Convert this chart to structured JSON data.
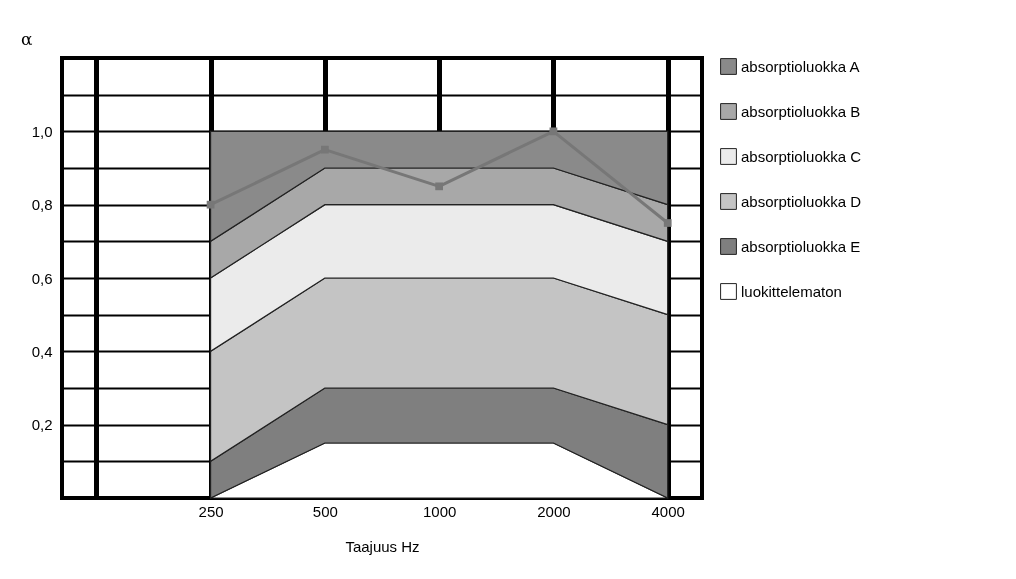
{
  "chart_data": {
    "type": "area",
    "stacked": true,
    "xlabel": "Taajuus Hz",
    "ylabel": "α",
    "categories": [
      null,
      "250",
      "500",
      "1000",
      "2000",
      "4000"
    ],
    "series": [
      {
        "name": "luokittelematon",
        "color": "#ffffff",
        "values": [
          null,
          0,
          0.15,
          0.15,
          0.15,
          0
        ]
      },
      {
        "name": "absorptioluokka E",
        "color": "#7f7f7f",
        "values": [
          null,
          0.1,
          0.15,
          0.15,
          0.15,
          0.2
        ]
      },
      {
        "name": "absorptioluokka D",
        "color": "#c4c4c4",
        "values": [
          null,
          0.3,
          0.3,
          0.3,
          0.3,
          0.3
        ]
      },
      {
        "name": "absorptioluokka C",
        "color": "#ebebeb",
        "values": [
          null,
          0.2,
          0.2,
          0.2,
          0.2,
          0.2
        ]
      },
      {
        "name": "absorptioluokka B",
        "color": "#a8a8a8",
        "values": [
          null,
          0.1,
          0.1,
          0.1,
          0.1,
          0.1
        ]
      },
      {
        "name": "absorptioluokka A",
        "color": "#8a8a8a",
        "values": [
          null,
          0.3,
          0.1,
          0.1,
          0.1,
          0.2
        ]
      },
      {
        "type": "line",
        "color": "#777777",
        "marker": "square",
        "values": [
          null,
          0.8,
          0.95,
          0.85,
          1.0,
          0.75
        ]
      }
    ],
    "ylim": [
      0,
      1.2
    ],
    "yticks": [
      {
        "value": 0.1,
        "label": null
      },
      {
        "value": 0.2,
        "label": "0,2"
      },
      {
        "value": 0.3,
        "label": null
      },
      {
        "value": 0.4,
        "label": "0,4"
      },
      {
        "value": 0.5,
        "label": null
      },
      {
        "value": 0.6,
        "label": "0,6"
      },
      {
        "value": 0.7,
        "label": null
      },
      {
        "value": 0.8,
        "label": "0,8"
      },
      {
        "value": 0.9,
        "label": null
      },
      {
        "value": 1.0,
        "label": "1,0"
      },
      {
        "value": 1.1,
        "label": null
      }
    ],
    "grid": true,
    "legend": "right",
    "line_style": "solid"
  }
}
